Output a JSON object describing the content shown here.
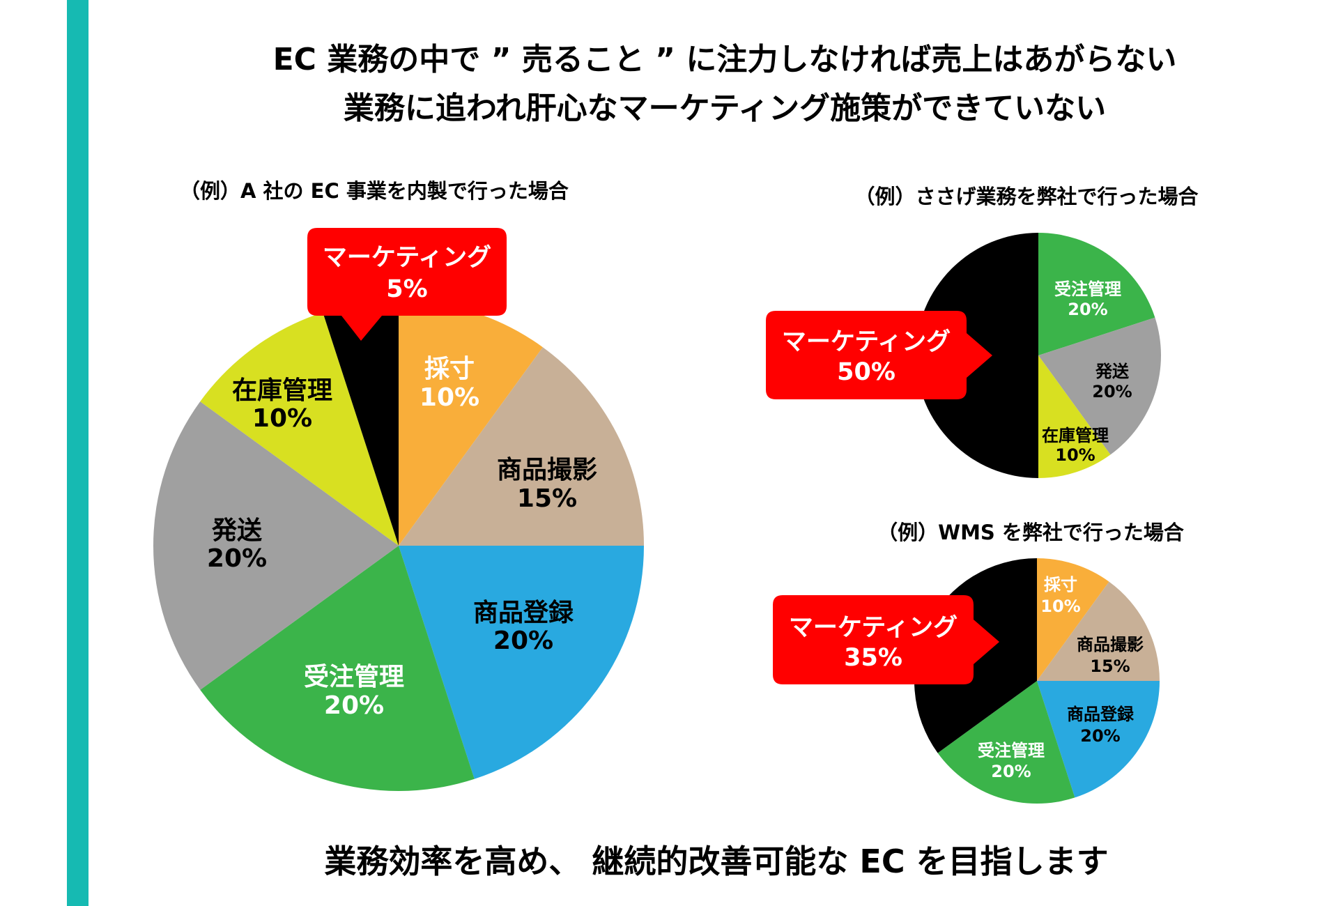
{
  "header": {
    "title_line1": "EC 業務の中で ” 売ること ” に注力しなければ売上はあがらない",
    "title_line2": "業務に追われ肝心なマーケティング施策ができていない"
  },
  "footer": {
    "message": "業務効率を高め、 継続的改善可能な EC を目指します"
  },
  "colors": {
    "accent_bar": "#16BAB2",
    "callout": "#FF0000"
  },
  "chart_data": [
    {
      "type": "pie",
      "title": "（例）A 社の EC 事業を内製で行った場合",
      "start": "top",
      "direction": "clockwise",
      "slices": [
        {
          "label": "採寸",
          "value": 10,
          "pct": "10%",
          "color": "#F9AE3A"
        },
        {
          "label": "商品撮影",
          "value": 15,
          "pct": "15%",
          "color": "#C8B097"
        },
        {
          "label": "商品登録",
          "value": 20,
          "pct": "20%",
          "color": "#29A9E0"
        },
        {
          "label": "受注管理",
          "value": 20,
          "pct": "20%",
          "color": "#3BB44A"
        },
        {
          "label": "発送",
          "value": 20,
          "pct": "20%",
          "color": "#A0A0A0"
        },
        {
          "label": "在庫管理",
          "value": 10,
          "pct": "10%",
          "color": "#D8E021"
        },
        {
          "label": "マーケティング",
          "value": 5,
          "pct": "5%",
          "color": "#000000"
        }
      ]
    },
    {
      "type": "pie",
      "title": "（例）ささげ業務を弊社で行った場合",
      "start": "top",
      "direction": "clockwise",
      "slices": [
        {
          "label": "受注管理",
          "value": 20,
          "pct": "20%",
          "color": "#3BB44A"
        },
        {
          "label": "発送",
          "value": 20,
          "pct": "20%",
          "color": "#A0A0A0"
        },
        {
          "label": "在庫管理",
          "value": 10,
          "pct": "10%",
          "color": "#D8E021"
        },
        {
          "label": "マーケティング",
          "value": 50,
          "pct": "50%",
          "color": "#000000"
        }
      ]
    },
    {
      "type": "pie",
      "title": "（例）WMS を弊社で行った場合",
      "start": "top",
      "direction": "clockwise",
      "slices": [
        {
          "label": "採寸",
          "value": 10,
          "pct": "10%",
          "color": "#F9AE3A"
        },
        {
          "label": "商品撮影",
          "value": 15,
          "pct": "15%",
          "color": "#C8B097"
        },
        {
          "label": "商品登録",
          "value": 20,
          "pct": "20%",
          "color": "#29A9E0"
        },
        {
          "label": "受注管理",
          "value": 20,
          "pct": "20%",
          "color": "#3BB44A"
        },
        {
          "label": "マーケティング",
          "value": 35,
          "pct": "35%",
          "color": "#000000"
        }
      ]
    }
  ]
}
